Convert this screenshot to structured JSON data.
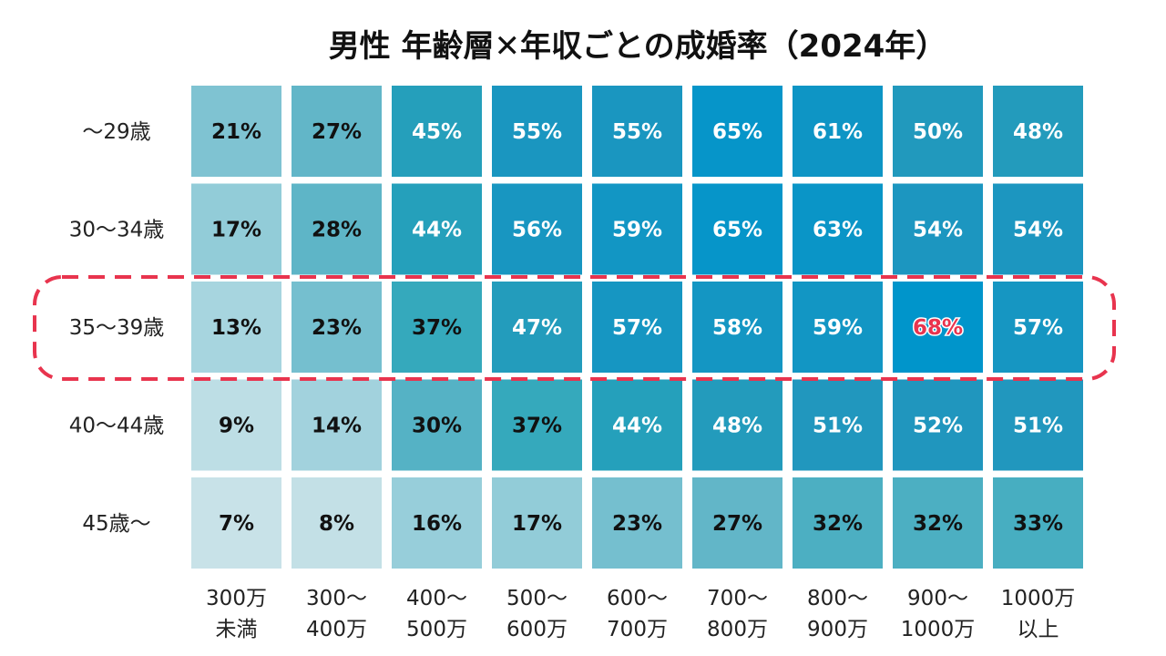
{
  "chart_data": {
    "type": "heatmap",
    "title": "男性 年齢層✕年収ごとの成婚率（2024年）",
    "rows": [
      "〜29歳",
      "30〜34歳",
      "35〜39歳",
      "40〜44歳",
      "45歳〜"
    ],
    "columns": [
      [
        "300万",
        "未満"
      ],
      [
        "300〜",
        "400万"
      ],
      [
        "400〜",
        "500万"
      ],
      [
        "500〜",
        "600万"
      ],
      [
        "600〜",
        "700万"
      ],
      [
        "700〜",
        "800万"
      ],
      [
        "800〜",
        "900万"
      ],
      [
        "900〜",
        "1000万"
      ],
      [
        "1000万",
        "以上"
      ]
    ],
    "values": [
      [
        21,
        27,
        45,
        55,
        55,
        65,
        61,
        50,
        48
      ],
      [
        17,
        28,
        44,
        56,
        59,
        65,
        63,
        54,
        54
      ],
      [
        13,
        23,
        37,
        47,
        57,
        58,
        59,
        68,
        57
      ],
      [
        9,
        14,
        30,
        37,
        44,
        48,
        51,
        52,
        51
      ],
      [
        7,
        8,
        16,
        17,
        23,
        27,
        32,
        32,
        33
      ]
    ],
    "value_suffix": "%",
    "highlight_row": 2,
    "highlight_cell": [
      2,
      7
    ],
    "colors": {
      "highlight_border": "#e8344e",
      "highlight_text": "#e8344e"
    }
  }
}
